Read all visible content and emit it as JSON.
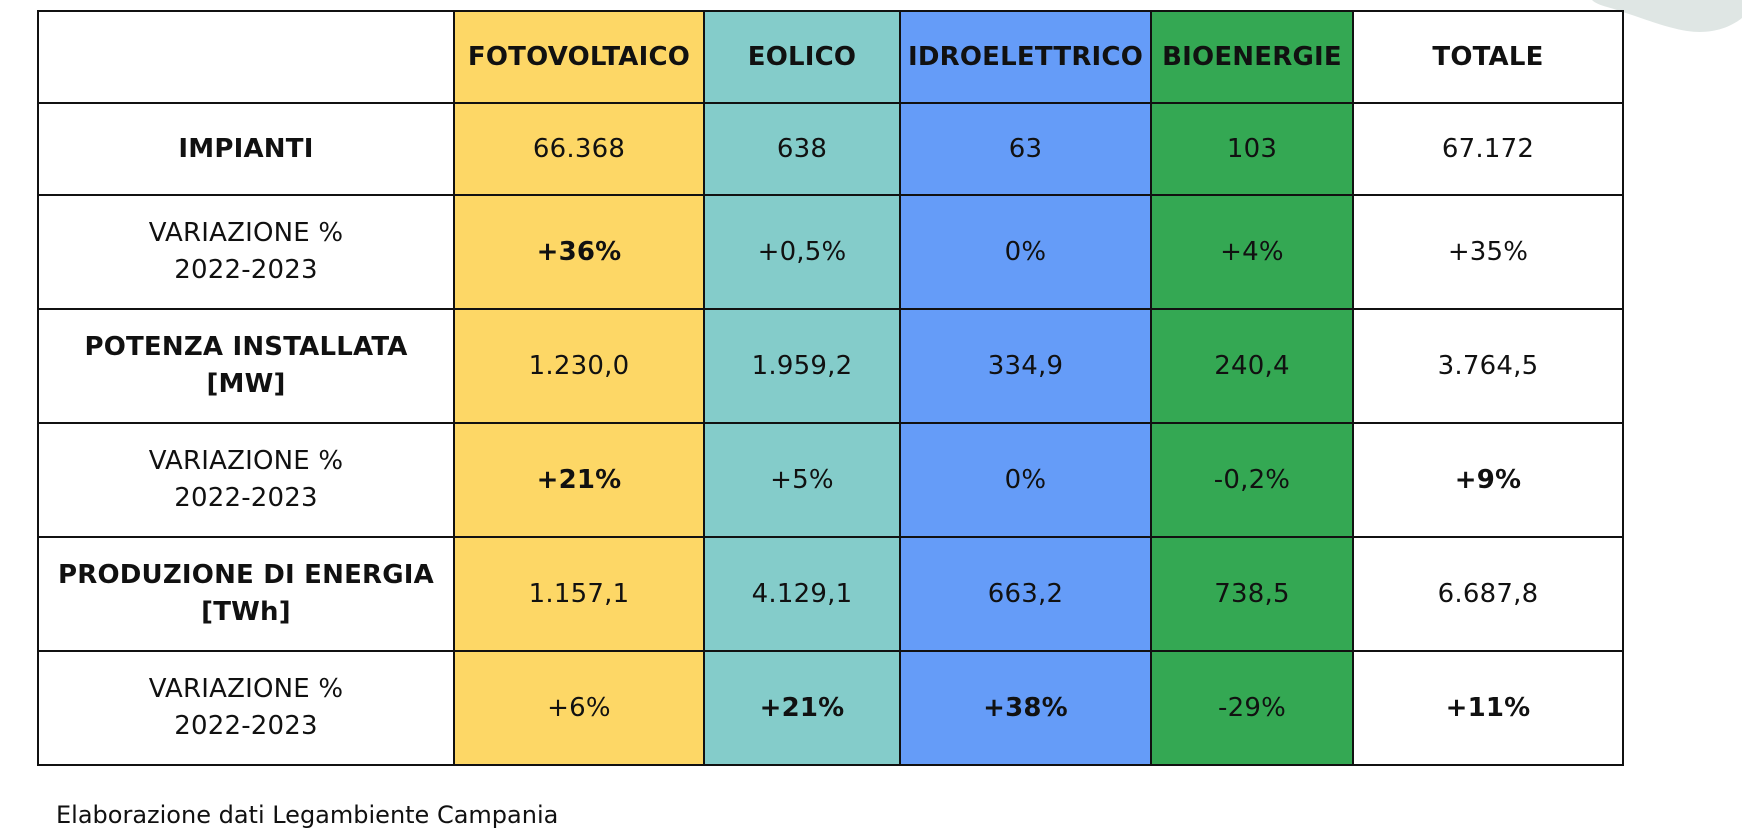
{
  "table": {
    "headers": [
      "",
      "FOTOVOLTAICO",
      "EOLICO",
      "IDROELETTRICO",
      "BIOENERGIE",
      "TOTALE"
    ],
    "rows": [
      {
        "label_line1": "IMPIANTI",
        "label_line2": "",
        "label_bold": true,
        "cells": [
          "66.368",
          "638",
          "63",
          "103",
          "67.172"
        ],
        "bold": [
          false,
          false,
          false,
          false,
          false
        ]
      },
      {
        "label_line1": "VARIAZIONE %",
        "label_line2": "2022-2023",
        "label_bold": false,
        "cells": [
          "+36%",
          "+0,5%",
          "0%",
          "+4%",
          "+35%"
        ],
        "bold": [
          true,
          false,
          false,
          false,
          false
        ]
      },
      {
        "label_line1": "POTENZA INSTALLATA",
        "label_line2": "[MW]",
        "label_bold": true,
        "cells": [
          "1.230,0",
          "1.959,2",
          "334,9",
          "240,4",
          "3.764,5"
        ],
        "bold": [
          false,
          false,
          false,
          false,
          false
        ]
      },
      {
        "label_line1": "VARIAZIONE %",
        "label_line2": "2022-2023",
        "label_bold": false,
        "cells": [
          "+21%",
          "+5%",
          "0%",
          "-0,2%",
          "+9%"
        ],
        "bold": [
          true,
          false,
          false,
          false,
          true
        ]
      },
      {
        "label_line1": "PRODUZIONE DI ENERGIA",
        "label_line2": "[TWh]",
        "label_bold": true,
        "cells": [
          "1.157,1",
          "4.129,1",
          "663,2",
          "738,5",
          "6.687,8"
        ],
        "bold": [
          false,
          false,
          false,
          false,
          false
        ]
      },
      {
        "label_line1": "VARIAZIONE %",
        "label_line2": "2022-2023",
        "label_bold": false,
        "cells": [
          "+6%",
          "+21%",
          "+38%",
          "-29%",
          "+11%"
        ],
        "bold": [
          false,
          true,
          true,
          false,
          true
        ]
      }
    ]
  },
  "source_note": "Elaborazione dati Legambiente Campania",
  "colors": {
    "fotovoltaico": "#fdd766",
    "eolico": "#84ccca",
    "idroelettrico": "#659cf8",
    "bioenergie": "#34a853",
    "totale": "#ffffff",
    "border": "#111111"
  }
}
